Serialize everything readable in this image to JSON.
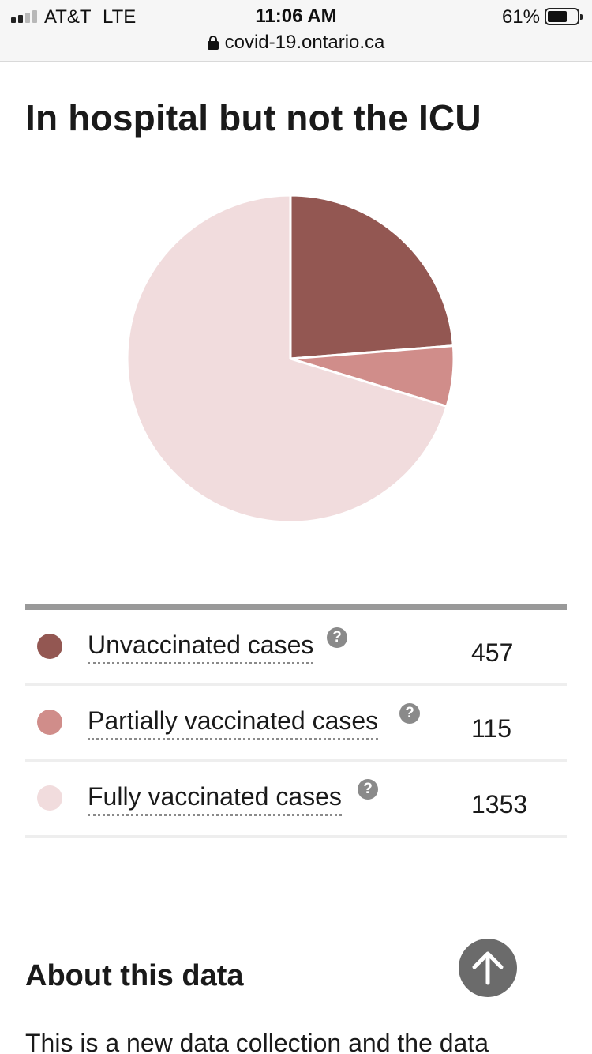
{
  "status_bar": {
    "carrier": "AT&T",
    "network": "LTE",
    "time": "11:06 AM",
    "battery_percent": "61%",
    "url": "covid-19.ontario.ca"
  },
  "section": {
    "title": "In hospital but not the ICU"
  },
  "chart_data": {
    "type": "pie",
    "categories": [
      "Unvaccinated cases",
      "Partially vaccinated cases",
      "Fully vaccinated cases"
    ],
    "values": [
      457,
      115,
      1353
    ],
    "colors": [
      "#935752",
      "#d08d8a",
      "#f1dcdd"
    ]
  },
  "legend": {
    "items": [
      {
        "label": "Unvaccinated cases",
        "value": "457",
        "color": "#935752"
      },
      {
        "label": "Partially vaccinated cases",
        "value": "115",
        "color": "#d08d8a"
      },
      {
        "label": "Fully vaccinated cases",
        "value": "1353",
        "color": "#f1dcdd"
      }
    ],
    "help_glyph": "?"
  },
  "about": {
    "title": "About this data",
    "text": "This is a new data collection and the data"
  }
}
